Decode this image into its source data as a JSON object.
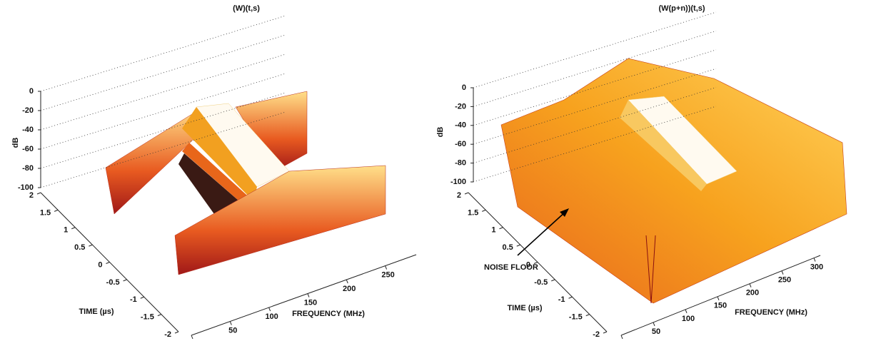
{
  "chart_data": [
    {
      "type": "surface",
      "title": "(W)(t,s)",
      "zlabel": "dB",
      "ylabel": "TIME (µs)",
      "xlabel": "FREQUENCY (MHz)",
      "zlim": [
        -100,
        0
      ],
      "zticks": [
        0,
        -20,
        -40,
        -60,
        -80,
        -100
      ],
      "ylim": [
        -2,
        2
      ],
      "yticks": [
        2,
        1.5,
        1,
        0.5,
        0,
        -0.5,
        -1,
        -1.5,
        -2
      ],
      "xlim": [
        0,
        290
      ],
      "xticks": [
        0,
        50,
        100,
        150,
        200,
        250
      ]
    },
    {
      "type": "surface",
      "title": "(W(p+n))(t,s)",
      "zlabel": "dB",
      "ylabel": "TIME (µs)",
      "xlabel": "FREQUENCY (MHz)",
      "zlim": [
        -100,
        0
      ],
      "zticks": [
        0,
        -20,
        -40,
        -60,
        -80,
        -100
      ],
      "ylim": [
        -2,
        2
      ],
      "yticks": [
        2,
        1.5,
        1,
        0.5,
        0,
        -0.5,
        -1,
        -1.5,
        -2
      ],
      "xlim": [
        0,
        310
      ],
      "xticks": [
        0,
        50,
        100,
        150,
        200,
        250,
        300
      ],
      "annotation": "NOISE FLOOR"
    }
  ]
}
